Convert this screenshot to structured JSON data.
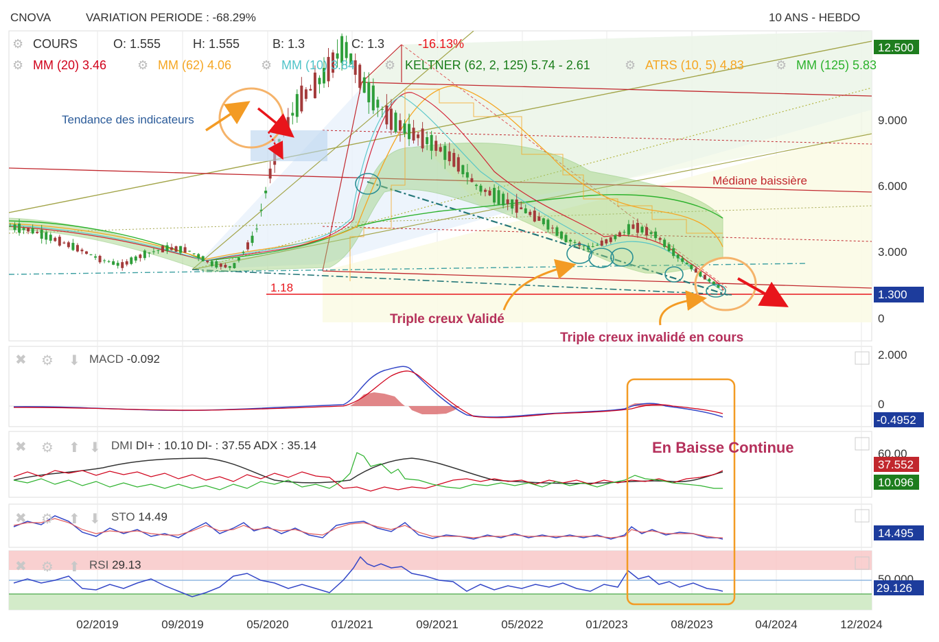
{
  "header": {
    "ticker": "CNOVA",
    "variation": "VARIATION PERIODE : -68.29%",
    "period": "10 ANS - HEBDO"
  },
  "ohlc": {
    "label": "COURS",
    "open": "O: 1.555",
    "high": "H: 1.555",
    "low": "B: 1.3",
    "close": "C: 1.3",
    "change": "-16.13%"
  },
  "indicators": [
    {
      "label": "MM (20)",
      "value": "3.46",
      "color": "#d0021b"
    },
    {
      "label": "MM (62)",
      "value": "4.06",
      "color": "#f5a623"
    },
    {
      "label": "MM (10)",
      "value": "3.84",
      "color": "#4fc3c8"
    },
    {
      "label": "KELTNER (62, 2, 125)",
      "value": "5.74 - 2.61",
      "color": "#1a7d1a"
    },
    {
      "label": "ATRS (10, 5)",
      "value": "4.83",
      "color": "#f5a623"
    },
    {
      "label": "MM (125)",
      "value": "5.83",
      "color": "#2db22d"
    }
  ],
  "annotations": {
    "trend_indicators": "Tendance des indicateurs",
    "median": "Médiane baissière",
    "support_level": "1.18",
    "triple_valid": "Triple creux Validé",
    "triple_invalid": "Triple creux invalidé en cours",
    "continuous_drop": "En Baisse Continue"
  },
  "chart_data": [
    {
      "type": "line",
      "title": "COURS",
      "yticks": [
        "12.500",
        "9.000",
        "6.000",
        "3.000",
        "0"
      ],
      "xticks": [
        "02/2019",
        "09/2019",
        "05/2020",
        "01/2021",
        "09/2021",
        "05/2022",
        "01/2023",
        "08/2023",
        "04/2024",
        "12/2024"
      ],
      "last_price_label": "1.300",
      "ylim": [
        0,
        12.5
      ],
      "x": [
        "2018-07",
        "2018-10",
        "2019-01",
        "2019-04",
        "2019-07",
        "2019-10",
        "2020-01",
        "2020-04",
        "2020-07",
        "2020-10",
        "2020-12",
        "2021-01",
        "2021-02",
        "2021-03",
        "2021-04",
        "2021-05",
        "2021-06",
        "2021-07",
        "2021-08",
        "2021-09",
        "2021-11",
        "2022-01",
        "2022-03",
        "2022-05",
        "2022-07",
        "2022-09",
        "2022-11",
        "2023-01",
        "2023-03",
        "2023-05",
        "2023-07",
        "2023-08",
        "2023-10"
      ],
      "series": [
        {
          "name": "COURS",
          "values": [
            4.2,
            4.0,
            3.6,
            3.2,
            2.7,
            2.4,
            2.9,
            3.2,
            3.1,
            2.5,
            2.3,
            3.8,
            8.0,
            10.0,
            11.0,
            12.5,
            10.5,
            9.2,
            8.5,
            8.0,
            7.2,
            6.0,
            5.5,
            5.0,
            4.4,
            3.6,
            3.2,
            3.6,
            4.2,
            3.8,
            2.8,
            2.0,
            1.3
          ]
        }
      ]
    },
    {
      "type": "line",
      "title": "MACD",
      "value_label": "-0.092",
      "yticks": [
        "2.000",
        "0"
      ],
      "last_value_label": "-0.4952"
    },
    {
      "type": "line",
      "title": "DMI",
      "value_label": "DI+ : 10.10 DI- : 37.55 ADX : 35.14",
      "yticks": [
        "60.00"
      ],
      "di_minus_label": "37.552",
      "di_plus_label": "10.096"
    },
    {
      "type": "line",
      "title": "STO",
      "value_label": "14.49",
      "last_value_label": "14.495"
    },
    {
      "type": "line",
      "title": "RSI",
      "value_label": "29.13",
      "yticks": [
        "50.000"
      ],
      "last_value_label": "29.126"
    }
  ]
}
